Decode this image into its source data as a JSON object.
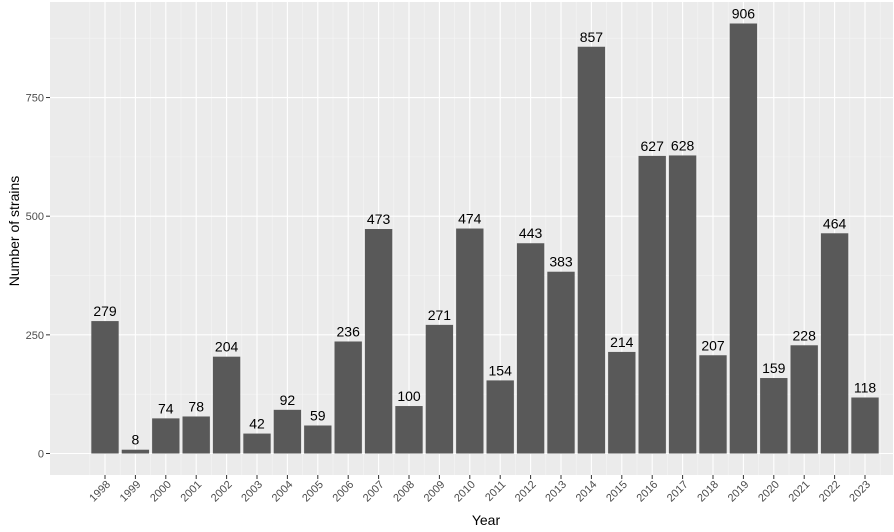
{
  "chart_data": {
    "type": "bar",
    "title": "",
    "xlabel": "Year",
    "ylabel": "Number of strains",
    "categories": [
      "1998",
      "1999",
      "2000",
      "2001",
      "2002",
      "2003",
      "2004",
      "2005",
      "2006",
      "2007",
      "2008",
      "2009",
      "2010",
      "2011",
      "2012",
      "2013",
      "2014",
      "2015",
      "2016",
      "2017",
      "2018",
      "2019",
      "2020",
      "2021",
      "2022",
      "2023"
    ],
    "values": [
      279,
      8,
      74,
      78,
      204,
      42,
      92,
      59,
      236,
      473,
      100,
      271,
      474,
      154,
      443,
      383,
      857,
      214,
      627,
      628,
      207,
      906,
      159,
      228,
      464,
      118
    ],
    "data_labels": [
      "279",
      "8",
      "74",
      "78",
      "204",
      "42",
      "92",
      "59",
      "236",
      "473",
      "100",
      "271",
      "474",
      "154",
      "443",
      "383",
      "857",
      "214",
      "627",
      "628",
      "207",
      "906",
      "159",
      "228",
      "464",
      "118"
    ],
    "yticks": [
      0,
      250,
      500,
      750
    ],
    "ytick_labels": [
      "0",
      "250",
      "500",
      "750"
    ],
    "ylim": [
      -45.3,
      951.3
    ],
    "grid": true,
    "legend": "none",
    "colors": {
      "bar": "#595959",
      "panel_background": "#ebebeb",
      "grid_major": "#ffffff",
      "grid_minor": "#f5f5f5",
      "tick_text": "#4d4d4d"
    }
  }
}
